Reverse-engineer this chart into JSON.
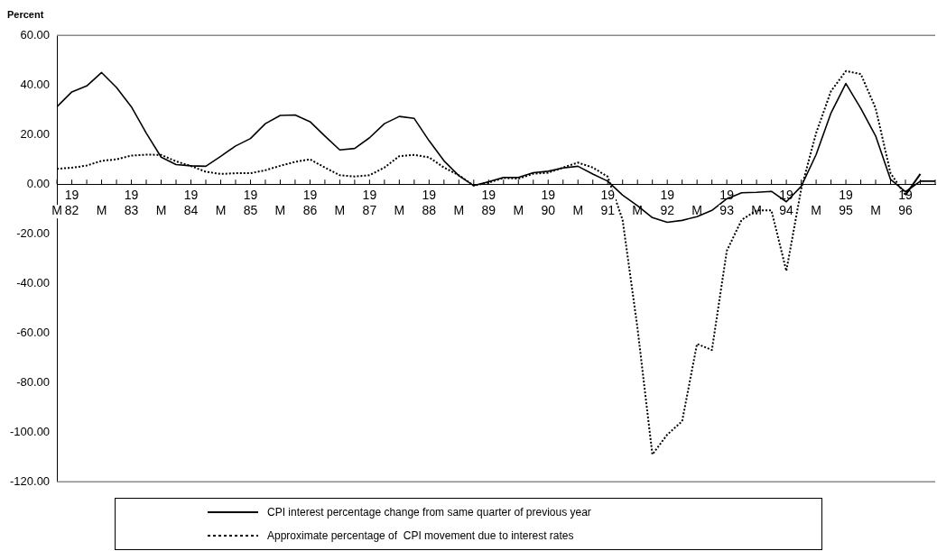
{
  "chart_data": {
    "type": "line",
    "title": "Percent",
    "categories": [
      "M",
      "19\n82",
      null,
      "M",
      null,
      "19\n83",
      null,
      "M",
      null,
      "19\n84",
      null,
      "M",
      null,
      "19\n85",
      null,
      "M",
      null,
      "19\n86",
      null,
      "M",
      null,
      "19\n87",
      null,
      "M",
      null,
      "19\n88",
      null,
      "M",
      null,
      "19\n89",
      null,
      "M",
      null,
      "19\n90",
      null,
      "M",
      null,
      "19\n91",
      null,
      "M",
      null,
      "19\n92",
      null,
      "M",
      null,
      "19\n93",
      null,
      "M",
      null,
      "19\n94",
      null,
      "M",
      null,
      "19\n95",
      null,
      "M",
      null,
      "19\n96",
      null,
      null
    ],
    "series": [
      {
        "name": "CPI interest percentage change from same quarter of previous year",
        "color": "#000000",
        "line_style": "solid",
        "values": [
          31.2,
          37.2,
          39.6,
          45,
          39,
          31.2,
          20.6,
          10.9,
          7.9,
          7.4,
          7.2,
          11.2,
          15.4,
          18.4,
          24.4,
          27.7,
          27.9,
          25.2,
          19.4,
          13.8,
          14.4,
          18.7,
          24.4,
          27.3,
          26.5,
          17.5,
          9.4,
          3.4,
          -0.6,
          1.0,
          2.7,
          2.7,
          4.6,
          5.2,
          6.5,
          7.2,
          4.1,
          1.2,
          -4.4,
          -8.7,
          -13.5,
          -15.4,
          -14.6,
          -13.1,
          -10.6,
          -5.9,
          -3.5,
          -3.3,
          -2.9,
          -7.1,
          -0.9,
          11.9,
          28.7,
          40.6,
          30.6,
          19.4,
          1.9,
          -3.1,
          1.2,
          1.2
        ]
      },
      {
        "name": "Approximate percentage of  CPI movement due to interest rates",
        "color": "#000000",
        "line_style": "dotted",
        "values": [
          6.2,
          6.6,
          7.5,
          9.4,
          10,
          11.5,
          11.9,
          11.8,
          9.2,
          7.3,
          5,
          4.1,
          4.4,
          4.4,
          5.6,
          7.4,
          9,
          10,
          6.7,
          3.6,
          3.1,
          3.6,
          6.7,
          11.3,
          11.8,
          10.8,
          6.7,
          3.6,
          -0.6,
          0.6,
          2.5,
          2.2,
          4.2,
          4.6,
          6.7,
          8.7,
          6.7,
          3.0,
          -14.4,
          -58,
          -109,
          -101,
          -95.6,
          -64.4,
          -66.9,
          -26.9,
          -14.4,
          -10.6,
          -10.6,
          -35,
          -1.9,
          20.6,
          37.5,
          45.6,
          44.4,
          30.6,
          4.4,
          -4.4,
          4.1,
          null
        ]
      }
    ],
    "ylim": [
      -120,
      60
    ],
    "yticks": [
      {
        "value": -120,
        "label": "-120.00"
      },
      {
        "value": -100,
        "label": "-100.00"
      },
      {
        "value": -80,
        "label": "-80.00"
      },
      {
        "value": -60,
        "label": "-60.00"
      },
      {
        "value": -40,
        "label": "-40.00"
      },
      {
        "value": -20,
        "label": "-20.00"
      },
      {
        "value": 0,
        "label": "0.00"
      },
      {
        "value": 20,
        "label": "20.00"
      },
      {
        "value": 40,
        "label": "40.00"
      },
      {
        "value": 60,
        "label": "60.00"
      }
    ],
    "legend": "bottom",
    "marker": "none"
  }
}
